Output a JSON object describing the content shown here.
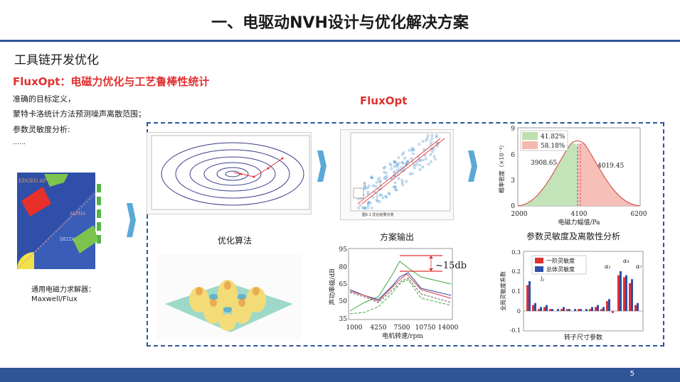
{
  "title": "一、电驱动NVH设计与优化解决方案",
  "section_title": "工具链开发优化",
  "headline": "FluxOpt：电磁力优化与工艺鲁棒性统计",
  "bullets": [
    "准确的目标定义，",
    "蒙特卡洛统计方法预测噪声离散范围；",
    "参数灵敏度分析:",
    "……"
  ],
  "fluxopt_label": "FluxOpt",
  "motor": {
    "caption": "通用电磁力求解器：Maxwell/Flux",
    "tag1": "EDGEO AP",
    "tag2": "ALPHA",
    "tag3": "DELTA"
  },
  "optimization": {
    "caption": "优化算法"
  },
  "solution": {
    "caption": "方案输出",
    "figure_label": "图5.1 优化结果示意"
  },
  "sensitivity": {
    "caption": "参数灵敏度及离散性分析",
    "dist_chart": {
      "xlabel": "电磁力幅值/Pa",
      "ylabel": "概率密度（×10⁻⁴）",
      "legend": [
        "41.82%",
        "58.18%"
      ],
      "ann_left": "3908.65",
      "ann_right": "4019.45",
      "x_ticks": [
        "2000",
        "4100",
        "6200"
      ],
      "y_ticks": [
        "0",
        "3",
        "6",
        "9"
      ]
    },
    "sens_chart": {
      "xlabel": "转子尺寸参数",
      "ylabel": "全局灵敏度系数",
      "legend": [
        "一阶灵敏度",
        "总体灵敏度"
      ],
      "y_ticks": [
        "-0.1",
        "0",
        "0.1",
        "0.2",
        "0.3"
      ],
      "labels": [
        "l₁",
        "α₄",
        "α₁",
        "α₇"
      ]
    }
  },
  "noise_chart": {
    "ylabel": "声功率级/dB",
    "xlabel": "电机转速/rpm",
    "x_ticks": [
      "1000",
      "4250",
      "7500",
      "10750",
      "14000"
    ],
    "y_ticks": [
      "35",
      "50",
      "65",
      "80",
      "95"
    ],
    "annotation": "~15db"
  },
  "colors": {
    "accent": "#2f5597",
    "red": "#e03030",
    "arrow": "#5aa9d6"
  },
  "page_number": "5"
}
